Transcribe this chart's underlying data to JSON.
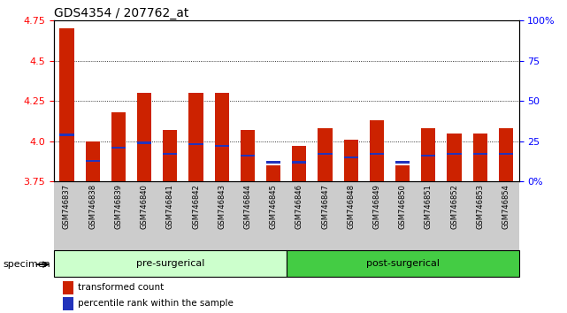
{
  "title": "GDS4354 / 207762_at",
  "samples": [
    "GSM746837",
    "GSM746838",
    "GSM746839",
    "GSM746840",
    "GSM746841",
    "GSM746842",
    "GSM746843",
    "GSM746844",
    "GSM746845",
    "GSM746846",
    "GSM746847",
    "GSM746848",
    "GSM746849",
    "GSM746850",
    "GSM746851",
    "GSM746852",
    "GSM746853",
    "GSM746854"
  ],
  "red_values": [
    4.7,
    4.0,
    4.18,
    4.3,
    4.07,
    4.3,
    4.3,
    4.07,
    3.85,
    3.97,
    4.08,
    4.01,
    4.13,
    3.85,
    4.08,
    4.05,
    4.05,
    4.08
  ],
  "blue_values": [
    4.04,
    3.88,
    3.96,
    3.99,
    3.92,
    3.98,
    3.97,
    3.91,
    3.87,
    3.87,
    3.92,
    3.9,
    3.92,
    3.87,
    3.91,
    3.92,
    3.92,
    3.92
  ],
  "ymin": 3.75,
  "ymax": 4.75,
  "y_ticks_left": [
    3.75,
    4.0,
    4.25,
    4.5,
    4.75
  ],
  "pre_surgical_count": 9,
  "post_surgical_count": 9,
  "pre_surgical_label": "pre-surgerical",
  "post_surgical_label": "post-surgerical",
  "specimen_label": "specimen",
  "legend_red": "transformed count",
  "legend_blue": "percentile rank within the sample",
  "bar_color": "#cc2200",
  "blue_color": "#2233bb",
  "bar_width": 0.55,
  "pre_bg": "#ccffcc",
  "post_bg": "#44cc44",
  "xtick_bg": "#cccccc",
  "grid_color": "#000000",
  "grid_style": "dotted"
}
